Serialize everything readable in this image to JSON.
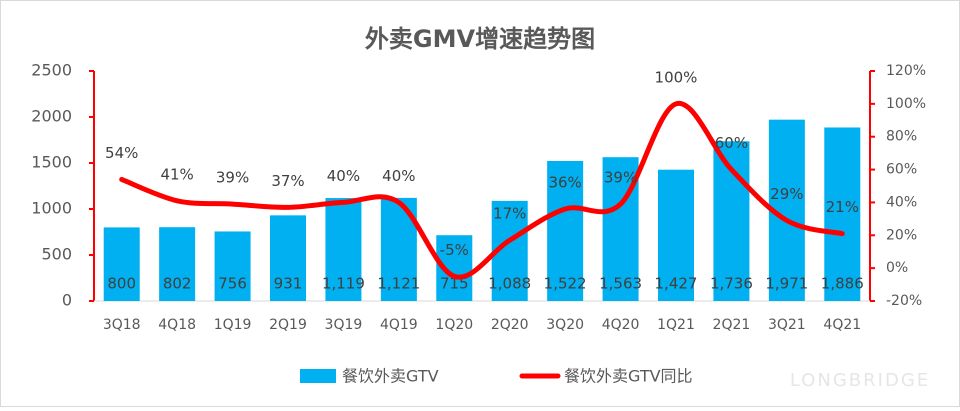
{
  "chart_data": {
    "type": "combo",
    "title": "外卖GMV增速趋势图",
    "categories": [
      "3Q18",
      "4Q18",
      "1Q19",
      "2Q19",
      "3Q19",
      "4Q19",
      "1Q20",
      "2Q20",
      "3Q20",
      "4Q20",
      "1Q21",
      "2Q21",
      "3Q21",
      "4Q21"
    ],
    "series": [
      {
        "name": "餐饮外卖GTV",
        "type": "bar",
        "color": "#00b0f0",
        "values": [
          800,
          802,
          756,
          931,
          1119,
          1121,
          715,
          1088,
          1522,
          1563,
          1427,
          1736,
          1971,
          1886
        ],
        "value_labels": [
          "800",
          "802",
          "756",
          "931",
          "1,119",
          "1,121",
          "715",
          "1,088",
          "1,522",
          "1,563",
          "1,427",
          "1,736",
          "1,971",
          "1,886"
        ]
      },
      {
        "name": "餐饮外卖GTV同比",
        "type": "line",
        "axis": "y2",
        "color": "#ff0000",
        "values": [
          54,
          41,
          39,
          37,
          40,
          40,
          -5,
          17,
          36,
          39,
          100,
          60,
          29,
          21
        ],
        "value_labels": [
          "54%",
          "41%",
          "39%",
          "37%",
          "40%",
          "40%",
          "-5%",
          "17%",
          "36%",
          "39%",
          "100%",
          "60%",
          "29%",
          "21%"
        ]
      }
    ],
    "ylim": [
      0,
      2500
    ],
    "yticks": [
      0,
      500,
      1000,
      1500,
      2000,
      2500
    ],
    "y2lim": [
      -20,
      120
    ],
    "y2ticks": [
      {
        "value": -20,
        "label": "-20%"
      },
      {
        "value": 0,
        "label": "0%"
      },
      {
        "value": 20,
        "label": "20%"
      },
      {
        "value": 40,
        "label": "40%"
      },
      {
        "value": 60,
        "label": "60%"
      },
      {
        "value": 80,
        "label": "80%"
      },
      {
        "value": 100,
        "label": "100%"
      },
      {
        "value": 120,
        "label": "120%"
      }
    ],
    "legend": "bottom",
    "watermark": "LONGBRIDGE"
  }
}
